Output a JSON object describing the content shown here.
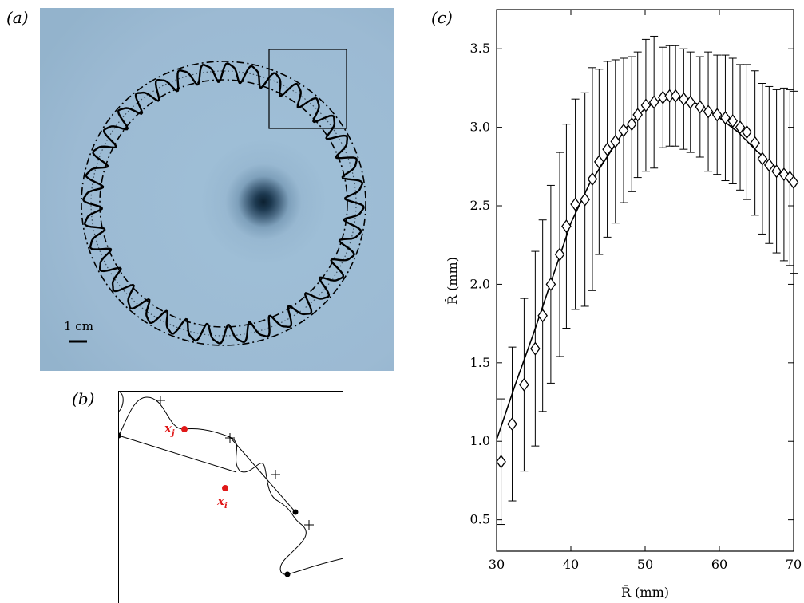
{
  "panels": {
    "a": "(a)",
    "b": "(b)",
    "c": "(c)"
  },
  "photo": {
    "scale_label": "1 cm",
    "background_color": "#9cbad3"
  },
  "diagram_b": {
    "point_j": "x",
    "point_j_sub": "j",
    "point_i": "x",
    "point_i_sub": "i",
    "marker_color": "#e01818"
  },
  "chart_data": {
    "type": "scatter",
    "title": "",
    "xlabel": "R̄ (mm)",
    "ylabel": "R̂ (mm)",
    "xlim": [
      30,
      70
    ],
    "ylim": [
      0.3,
      3.75
    ],
    "xticks": [
      30,
      40,
      50,
      60,
      70
    ],
    "yticks": [
      0.5,
      1.0,
      1.5,
      2.0,
      2.5,
      3.0,
      3.5
    ],
    "ytick_labels": [
      "0.5",
      "1.0",
      "1.5",
      "2.0",
      "2.5",
      "3.0",
      "3.5"
    ],
    "grid": false,
    "marker": "diamond",
    "series": [
      {
        "x": [
          30.6,
          32.1,
          33.7,
          35.2,
          36.2,
          37.3,
          38.5,
          39.4,
          40.6,
          41.9,
          42.9,
          43.8,
          44.9,
          46.0,
          47.1,
          48.2,
          49.0,
          50.1,
          51.2,
          52.4,
          53.3,
          54.1,
          55.2,
          56.1,
          57.4,
          58.5,
          59.7,
          60.8,
          61.8,
          62.8,
          63.7,
          64.8,
          65.8,
          66.7,
          67.7,
          68.7,
          69.5,
          70.0
        ],
        "y": [
          0.87,
          1.11,
          1.36,
          1.59,
          1.8,
          2.0,
          2.19,
          2.37,
          2.51,
          2.54,
          2.67,
          2.78,
          2.86,
          2.91,
          2.98,
          3.02,
          3.08,
          3.14,
          3.16,
          3.19,
          3.2,
          3.2,
          3.18,
          3.16,
          3.13,
          3.1,
          3.08,
          3.06,
          3.04,
          3.0,
          2.97,
          2.9,
          2.8,
          2.76,
          2.72,
          2.7,
          2.68,
          2.65
        ],
        "yerr": [
          0.4,
          0.49,
          0.55,
          0.62,
          0.61,
          0.63,
          0.65,
          0.65,
          0.67,
          0.68,
          0.71,
          0.59,
          0.56,
          0.52,
          0.46,
          0.43,
          0.4,
          0.42,
          0.42,
          0.32,
          0.32,
          0.32,
          0.32,
          0.32,
          0.32,
          0.38,
          0.38,
          0.4,
          0.4,
          0.4,
          0.43,
          0.46,
          0.48,
          0.5,
          0.52,
          0.55,
          0.56,
          0.58
        ]
      }
    ],
    "fit_line": {
      "x": [
        30.0,
        32.5,
        35.0,
        37.5,
        40.0,
        42.5,
        45.0,
        47.5,
        50.0,
        52.5,
        55.0,
        57.5,
        60.0,
        62.5,
        65.0,
        67.5,
        70.0
      ],
      "y": [
        1.01,
        1.36,
        1.69,
        2.04,
        2.39,
        2.64,
        2.82,
        3.0,
        3.12,
        3.19,
        3.19,
        3.14,
        3.06,
        2.97,
        2.85,
        2.75,
        2.63
      ]
    }
  }
}
